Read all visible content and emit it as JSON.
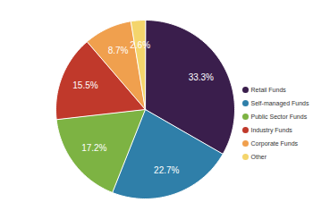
{
  "chart_data": {
    "type": "pie",
    "categories": [
      "Retail Funds",
      "Self-managed Funds",
      "Public Sector Funds",
      "Industry Funds",
      "Corporate Funds",
      "Other"
    ],
    "values": [
      33.3,
      22.7,
      17.2,
      15.5,
      8.7,
      2.6
    ],
    "value_labels": [
      "33.3%",
      "22.7%",
      "17.2%",
      "15.5%",
      "8.7%",
      "2.6%"
    ],
    "colors": [
      "#3a1e4c",
      "#2f7fa9",
      "#7db343",
      "#c0392b",
      "#f0a04e",
      "#f4d56c"
    ],
    "data_labels": true,
    "legend": "right"
  }
}
